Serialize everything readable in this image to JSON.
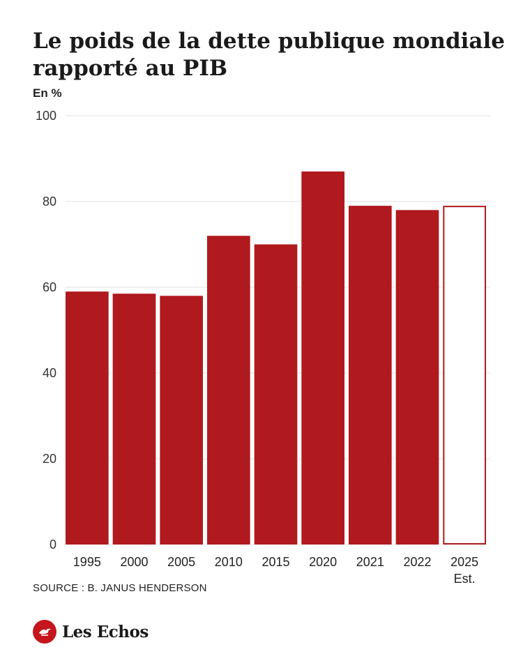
{
  "chart_data": {
    "type": "bar",
    "title": "Le poids de la dette publique mondiale rapporté au PIB",
    "unit_label": "En %",
    "ylim": [
      0,
      100
    ],
    "yticks": [
      0,
      20,
      40,
      60,
      80,
      100
    ],
    "grid": true,
    "categories": [
      "1995",
      "2000",
      "2005",
      "2010",
      "2015",
      "2020",
      "2021",
      "2022",
      "2025"
    ],
    "category_sublabels": [
      "",
      "",
      "",
      "",
      "",
      "",
      "",
      "",
      "Est."
    ],
    "values": [
      59,
      58.5,
      58,
      72,
      70,
      87,
      79,
      78,
      79
    ],
    "estimated": [
      false,
      false,
      false,
      false,
      false,
      false,
      false,
      false,
      true
    ],
    "bar_color": "#b0191e",
    "source": "SOURCE : B. JANUS HENDERSON"
  },
  "brand": {
    "name": "Les Echos",
    "color": "#c4161c"
  }
}
